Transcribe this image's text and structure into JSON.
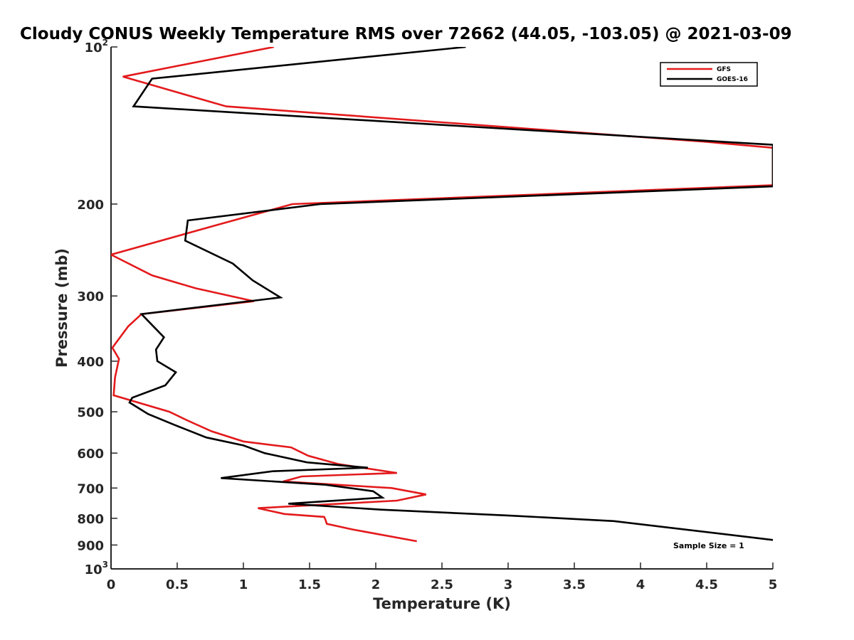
{
  "chart_data": {
    "type": "line",
    "title": "Cloudy CONUS Weekly Temperature RMS over 72662 (44.05, -103.05) @ 2021-03-09",
    "xlabel": "Temperature (K)",
    "ylabel": "Pressure (mb)",
    "xlim": [
      0,
      5
    ],
    "ylim": [
      100,
      1000
    ],
    "y_scale": "log",
    "y_reversed": true,
    "grid": false,
    "legend_position": "top-right",
    "x_ticks": [
      "0",
      "0.5",
      "1",
      "1.5",
      "2",
      "2.5",
      "3",
      "3.5",
      "4",
      "4.5",
      "5"
    ],
    "y_ticks": [
      {
        "value": 100,
        "base": "10",
        "exp": "2"
      },
      {
        "value": 200,
        "label": "200"
      },
      {
        "value": 300,
        "label": "300"
      },
      {
        "value": 400,
        "label": "400"
      },
      {
        "value": 500,
        "label": "500"
      },
      {
        "value": 600,
        "label": "600"
      },
      {
        "value": 700,
        "label": "700"
      },
      {
        "value": 800,
        "label": "800"
      },
      {
        "value": 900,
        "label": "900"
      },
      {
        "value": 1000,
        "base": "10",
        "exp": "3"
      }
    ],
    "annotation": "Sample Size = 1",
    "series": [
      {
        "name": "GFS",
        "color": "#e31a1c",
        "x": [
          1.23,
          0.09,
          0.87,
          4.5,
          5.0,
          5.0,
          1.37,
          0.81,
          0.0,
          0.31,
          0.64,
          1.08,
          0.23,
          0.13,
          0.01,
          0.06,
          0.03,
          0.02,
          0.44,
          0.58,
          0.76,
          1.0,
          1.36,
          1.49,
          1.72,
          2.16,
          1.44,
          1.3,
          2.12,
          2.38,
          2.16,
          1.11,
          1.31,
          1.61,
          1.62,
          1.63,
          1.82,
          2.31
        ],
        "y": [
          100,
          114,
          130,
          152,
          156,
          184,
          200,
          219,
          250,
          274,
          290,
          307,
          325,
          343,
          377,
          396,
          430,
          465,
          500,
          520,
          545,
          570,
          585,
          607,
          630,
          655,
          665,
          680,
          700,
          720,
          740,
          765,
          785,
          795,
          805,
          820,
          840,
          885
        ]
      },
      {
        "name": "GOES-16",
        "color": "#000000",
        "x": [
          2.68,
          0.31,
          0.17,
          5.0,
          5.0,
          1.58,
          0.58,
          0.56,
          0.92,
          1.07,
          1.28,
          0.23,
          0.4,
          0.34,
          0.35,
          0.49,
          0.41,
          0.16,
          0.14,
          0.28,
          0.48,
          0.72,
          1.0,
          1.16,
          1.48,
          1.94,
          1.22,
          0.83,
          1.62,
          1.98,
          2.05,
          1.34,
          2.04,
          3.0,
          3.8,
          5.0
        ],
        "y": [
          100,
          115,
          130,
          154,
          185,
          200,
          215,
          235,
          260,
          280,
          302,
          325,
          360,
          380,
          400,
          420,
          445,
          470,
          480,
          505,
          530,
          560,
          580,
          600,
          625,
          640,
          650,
          670,
          690,
          710,
          730,
          750,
          770,
          790,
          810,
          880
        ]
      }
    ]
  }
}
